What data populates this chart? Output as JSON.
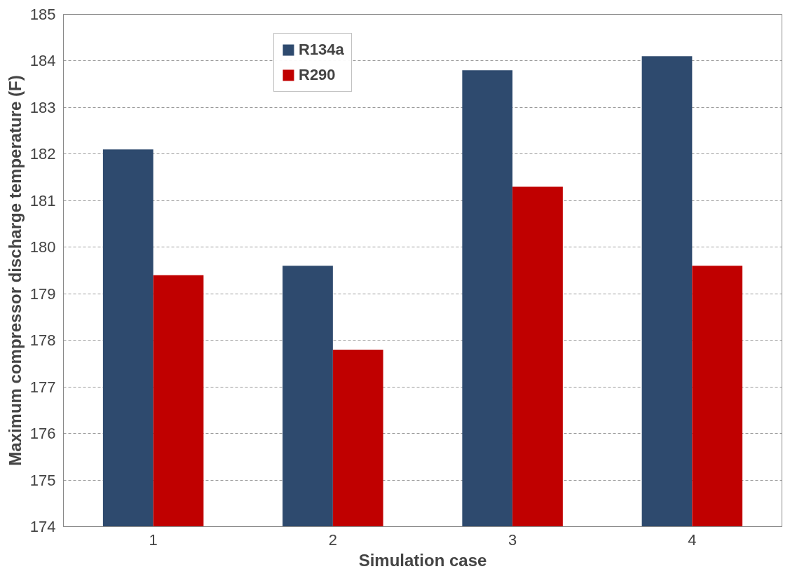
{
  "chart_data": {
    "type": "bar",
    "xlabel": "Simulation case",
    "ylabel": "Maximum compressor discharge temperature (F)",
    "categories": [
      "1",
      "2",
      "3",
      "4"
    ],
    "series": [
      {
        "name": "R134a",
        "color": "#2e4a6e",
        "values": [
          182.1,
          179.6,
          183.8,
          184.1
        ]
      },
      {
        "name": "R290",
        "color": "#c00000",
        "values": [
          179.4,
          177.8,
          181.3,
          179.6
        ]
      }
    ],
    "ylim": [
      174,
      185
    ],
    "yticks": [
      174,
      175,
      176,
      177,
      178,
      179,
      180,
      181,
      182,
      183,
      184,
      185
    ],
    "grid": "y",
    "legend": "top"
  }
}
